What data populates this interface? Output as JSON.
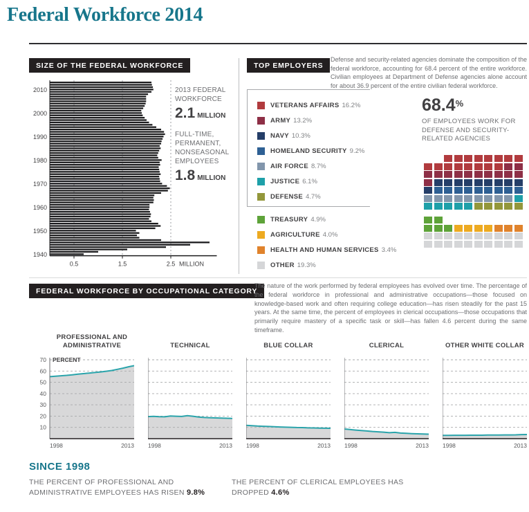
{
  "title": "Federal Workforce 2014",
  "colors": {
    "accent_teal": "#17768b",
    "line_teal": "#2aa4ab",
    "header_bar_bg": "#231f20",
    "bar_color": "#1b1b1d",
    "area_gray": "#d8d8d9"
  },
  "size_section": {
    "header": "SIZE OF THE FEDERAL WORKFORCE",
    "callouts": [
      {
        "label": "2013 FEDERAL WORKFORCE",
        "value": "2.1",
        "unit": "MILLION"
      },
      {
        "label": "FULL-TIME, PERMANENT, NONSEASONAL EMPLOYEES",
        "value": "1.8",
        "unit": "MILLION"
      }
    ]
  },
  "top_employers": {
    "header": "TOP EMPLOYERS",
    "intro": "Defense and security-related agencies dominate the composition of the federal workforce, accounting for 68.4 percent of the entire workforce. Civilian employees at Department of Defense agencies alone account for about 36.9 percent of the entire civilian federal workforce.",
    "big_stat_value": "68.4",
    "big_stat_pct": "%",
    "big_stat_caption": "OF EMPLOYEES WORK FOR DEFENSE AND SECURITY-RELATED AGENCIES",
    "defense_agencies": [
      {
        "label": "VETERANS AFFAIRS",
        "pct": "16.2%",
        "color": "#b13b3e",
        "squares": 16
      },
      {
        "label": "ARMY",
        "pct": "13.2%",
        "color": "#8e2f46",
        "squares": 13
      },
      {
        "label": "NAVY",
        "pct": "10.3%",
        "color": "#253e68",
        "squares": 10
      },
      {
        "label": "HOMELAND SECURITY",
        "pct": "9.2%",
        "color": "#2e6094",
        "squares": 9
      },
      {
        "label": "AIR FORCE",
        "pct": "8.7%",
        "color": "#8296ac",
        "squares": 9
      },
      {
        "label": "JUSTICE",
        "pct": "6.1%",
        "color": "#1ea0a9",
        "squares": 6
      },
      {
        "label": "DEFENSE",
        "pct": "4.7%",
        "color": "#93973b",
        "squares": 5
      }
    ],
    "other_agencies": [
      {
        "label": "TREASURY",
        "pct": "4.9%",
        "color": "#5ea339",
        "squares": 5
      },
      {
        "label": "AGRICULTURE",
        "pct": "4.0%",
        "color": "#edaa21",
        "squares": 4
      },
      {
        "label": "HEALTH AND HUMAN SERVICES",
        "pct": "3.4%",
        "color": "#e0832c",
        "squares": 3
      },
      {
        "label": "OTHER",
        "pct": "19.3%",
        "color": "#d5d6d8",
        "squares": 20
      }
    ]
  },
  "occupational": {
    "header": "FEDERAL WORKFORCE BY OCCUPATIONAL CATEGORY",
    "intro": "The nature of the work performed by federal employees has evolved over time. The percentage of the federal workforce in professional and administrative occupations—those focused on knowledge-based work and often requiring college education—has risen steadily for the past 15 years. At the same time, the percent of employees in clerical occupations—those occupations that primarily require mastery of a specific task or skill—has fallen 4.6 percent during the same timeframe."
  },
  "since_1998": {
    "header": "SINCE 1998",
    "stats": [
      {
        "text": "THE PERCENT OF PROFESSIONAL AND ADMINISTRATIVE EMPLOYEES HAS RISEN",
        "value": "9.8%"
      },
      {
        "text": "THE PERCENT OF CLERICAL EMPLOYEES HAS DROPPED",
        "value": "4.6%"
      }
    ]
  },
  "chart_data": [
    {
      "id": "workforce_size",
      "type": "bar",
      "orientation": "horizontal",
      "title": "SIZE OF THE FEDERAL WORKFORCE",
      "years_start": 1940,
      "years_end": 2013,
      "values": [
        0.7,
        1.0,
        1.6,
        2.4,
        2.9,
        3.3,
        2.3,
        1.85,
        1.8,
        1.85,
        1.78,
        2.18,
        2.29,
        2.24,
        2.1,
        2.05,
        2.08,
        2.09,
        2.07,
        2.05,
        2.06,
        2.06,
        2.14,
        2.15,
        2.14,
        2.16,
        2.3,
        2.44,
        2.48,
        2.42,
        2.32,
        2.28,
        2.27,
        2.26,
        2.29,
        2.27,
        2.26,
        2.25,
        2.28,
        2.27,
        2.31,
        2.24,
        2.22,
        2.24,
        2.26,
        2.29,
        2.27,
        2.3,
        2.31,
        2.33,
        2.35,
        2.38,
        2.36,
        2.3,
        2.2,
        2.12,
        2.05,
        2.0,
        1.96,
        1.92,
        1.9,
        1.89,
        1.93,
        1.96,
        1.98,
        1.99,
        1.99,
        1.99,
        2.03,
        2.1,
        2.14,
        2.13,
        2.11,
        2.1
      ],
      "year_ticks": [
        2010,
        2000,
        1990,
        1980,
        1970,
        1960,
        1950,
        1940
      ],
      "x_ticks": [
        "0.5",
        "1.5",
        "2.5"
      ],
      "x_unit": "MILLION",
      "xlim": [
        0,
        3.5
      ]
    },
    {
      "id": "top_employers_share",
      "type": "waffle",
      "categories": [
        "VETERANS AFFAIRS",
        "ARMY",
        "NAVY",
        "HOMELAND SECURITY",
        "AIR FORCE",
        "JUSTICE",
        "DEFENSE",
        "TREASURY",
        "AGRICULTURE",
        "HEALTH AND HUMAN SERVICES",
        "OTHER"
      ],
      "values": [
        16.2,
        13.2,
        10.3,
        9.2,
        8.7,
        6.1,
        4.7,
        4.9,
        4.0,
        3.4,
        19.3
      ],
      "highlighted_share": "68.4%"
    },
    {
      "id": "occupational_trends",
      "type": "line",
      "x_start": 1998,
      "x_end": 2013,
      "ylim": [
        0,
        70
      ],
      "y_ticks": [
        10,
        20,
        30,
        40,
        50,
        60,
        70
      ],
      "y_unit": "PERCENT",
      "series": [
        {
          "name": "PROFESSIONAL AND ADMINISTRATIVE",
          "values": [
            55.0,
            55.4,
            55.8,
            56.2,
            56.7,
            57.2,
            57.7,
            58.2,
            58.7,
            59.2,
            59.8,
            60.5,
            61.5,
            62.6,
            63.8,
            64.8
          ]
        },
        {
          "name": "TECHNICAL",
          "values": [
            19.6,
            19.8,
            19.5,
            19.4,
            20.1,
            19.9,
            19.7,
            20.4,
            19.9,
            19.2,
            18.8,
            18.6,
            18.4,
            18.3,
            18.1,
            18.0
          ]
        },
        {
          "name": "BLUE COLLAR",
          "values": [
            11.8,
            11.5,
            11.2,
            11.0,
            10.8,
            10.6,
            10.4,
            10.2,
            10.1,
            9.9,
            9.8,
            9.6,
            9.5,
            9.4,
            9.3,
            9.2
          ]
        },
        {
          "name": "CLERICAL",
          "values": [
            8.6,
            8.1,
            7.6,
            7.2,
            6.8,
            6.4,
            6.1,
            5.8,
            5.3,
            5.6,
            5.0,
            4.7,
            4.5,
            4.3,
            4.1,
            4.0
          ]
        },
        {
          "name": "OTHER WHITE COLLAR",
          "values": [
            2.9,
            2.9,
            3.0,
            3.0,
            3.0,
            3.1,
            3.1,
            3.1,
            3.2,
            3.2,
            3.2,
            3.3,
            3.3,
            3.4,
            3.6,
            3.7
          ]
        }
      ]
    }
  ]
}
